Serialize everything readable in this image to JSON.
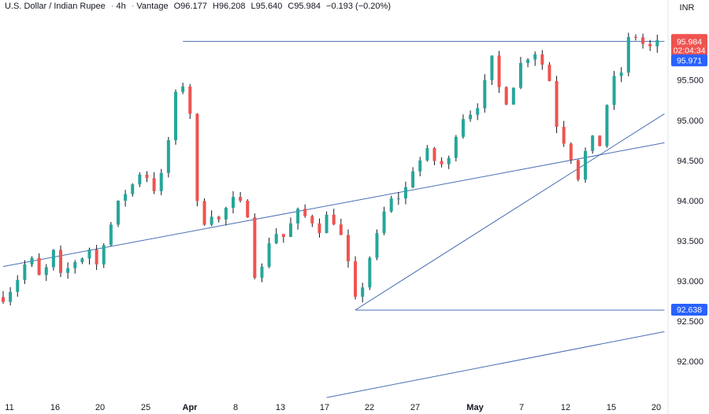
{
  "header": {
    "symbol": "U.S. Dollar / Indian Rupee",
    "interval": "4h",
    "broker": "Vantage",
    "open": "O96.177",
    "high": "H96.208",
    "low": "L95.640",
    "close": "C95.984",
    "change": "−0.193 (−0.20%)"
  },
  "currency_button": "INR",
  "colors": {
    "up": "#26a69a",
    "down": "#ef5350",
    "wick": "#131722",
    "trendline": "#4a6fb5",
    "price_label_current": "#ef5350",
    "price_label_level": "#2962ff",
    "axis_text": "#131722"
  },
  "chart_data": {
    "type": "candlestick",
    "ylim": [
      91.6,
      96.3
    ],
    "grid": false,
    "y_ticks": [
      "92.000",
      "92.500",
      "93.000",
      "93.500",
      "94.000",
      "94.500",
      "95.000",
      "95.500"
    ],
    "y_tick_values": [
      92.0,
      92.5,
      93.0,
      93.5,
      94.0,
      94.5,
      95.0,
      95.5
    ],
    "x_ticks": [
      "11",
      "16",
      "20",
      "25",
      "Apr",
      "8",
      "13",
      "17",
      "22",
      "27",
      "May",
      "7",
      "12",
      "15",
      "20"
    ],
    "price_labels": [
      {
        "text": "95.984",
        "value": 95.984,
        "kind": "current"
      },
      {
        "text": "02:04:34",
        "value": 95.984,
        "kind": "countdown"
      },
      {
        "text": "95.971",
        "value": 95.971,
        "kind": "level"
      },
      {
        "text": "92.638",
        "value": 92.638,
        "kind": "level"
      }
    ],
    "close_path": [
      [
        0,
        92.8
      ],
      [
        6,
        92.95
      ],
      [
        12,
        93.2
      ],
      [
        16,
        93.25
      ],
      [
        20,
        93.05
      ],
      [
        24,
        93.15
      ],
      [
        28,
        93.35
      ],
      [
        32,
        93.05
      ],
      [
        36,
        93.15
      ],
      [
        40,
        93.25
      ],
      [
        44,
        93.3
      ],
      [
        48,
        93.4
      ],
      [
        52,
        93.2
      ],
      [
        56,
        93.5
      ],
      [
        60,
        93.7
      ],
      [
        64,
        93.95
      ],
      [
        68,
        94.1
      ],
      [
        72,
        94.2
      ],
      [
        76,
        94.35
      ],
      [
        80,
        94.3
      ],
      [
        84,
        94.15
      ],
      [
        88,
        94.3
      ],
      [
        92,
        94.75
      ],
      [
        96,
        95.3
      ],
      [
        100,
        95.45
      ],
      [
        104,
        95.1
      ],
      [
        108,
        93.95
      ],
      [
        112,
        93.75
      ],
      [
        116,
        93.85
      ],
      [
        120,
        93.75
      ],
      [
        124,
        93.9
      ],
      [
        128,
        94.0
      ],
      [
        132,
        93.95
      ],
      [
        136,
        93.85
      ],
      [
        140,
        93.1
      ],
      [
        144,
        93.15
      ],
      [
        148,
        93.5
      ],
      [
        152,
        93.6
      ],
      [
        156,
        93.55
      ],
      [
        160,
        93.7
      ],
      [
        164,
        93.85
      ],
      [
        168,
        93.8
      ],
      [
        172,
        93.75
      ],
      [
        176,
        93.65
      ],
      [
        180,
        93.8
      ],
      [
        184,
        93.75
      ],
      [
        188,
        93.55
      ],
      [
        192,
        93.2
      ],
      [
        196,
        92.75
      ],
      [
        200,
        92.95
      ],
      [
        204,
        93.3
      ],
      [
        208,
        93.55
      ],
      [
        212,
        93.85
      ],
      [
        216,
        94.0
      ],
      [
        220,
        94.05
      ],
      [
        224,
        94.15
      ],
      [
        228,
        94.4
      ],
      [
        232,
        94.5
      ],
      [
        236,
        94.6
      ],
      [
        240,
        94.5
      ],
      [
        244,
        94.45
      ],
      [
        248,
        94.5
      ],
      [
        252,
        94.85
      ],
      [
        256,
        95.05
      ],
      [
        260,
        95.1
      ],
      [
        264,
        95.2
      ],
      [
        268,
        95.45
      ],
      [
        272,
        95.75
      ],
      [
        276,
        95.4
      ],
      [
        280,
        95.25
      ],
      [
        284,
        95.45
      ],
      [
        288,
        95.7
      ],
      [
        292,
        95.8
      ],
      [
        296,
        95.85
      ],
      [
        300,
        95.7
      ],
      [
        304,
        95.5
      ],
      [
        308,
        94.95
      ],
      [
        312,
        94.75
      ],
      [
        316,
        94.55
      ],
      [
        320,
        94.3
      ],
      [
        324,
        94.6
      ],
      [
        328,
        94.75
      ],
      [
        332,
        94.7
      ],
      [
        336,
        95.2
      ],
      [
        340,
        95.5
      ],
      [
        344,
        95.6
      ],
      [
        348,
        96.0
      ],
      [
        352,
        96.05
      ],
      [
        356,
        95.95
      ],
      [
        360,
        95.9
      ],
      [
        364,
        95.95
      ],
      [
        368,
        95.984
      ]
    ],
    "trendlines": [
      {
        "x1": 0,
        "y1": 93.18,
        "x2": 368,
        "y2": 94.72
      },
      {
        "x1": 196,
        "y1": 92.64,
        "x2": 368,
        "y2": 95.08
      },
      {
        "x1": 196,
        "y1": 92.638,
        "x2": 368,
        "y2": 92.638
      },
      {
        "x1": 100,
        "y1": 95.98,
        "x2": 368,
        "y2": 95.98
      },
      {
        "x1": 180,
        "y1": 91.55,
        "x2": 368,
        "y2": 92.37
      }
    ]
  }
}
